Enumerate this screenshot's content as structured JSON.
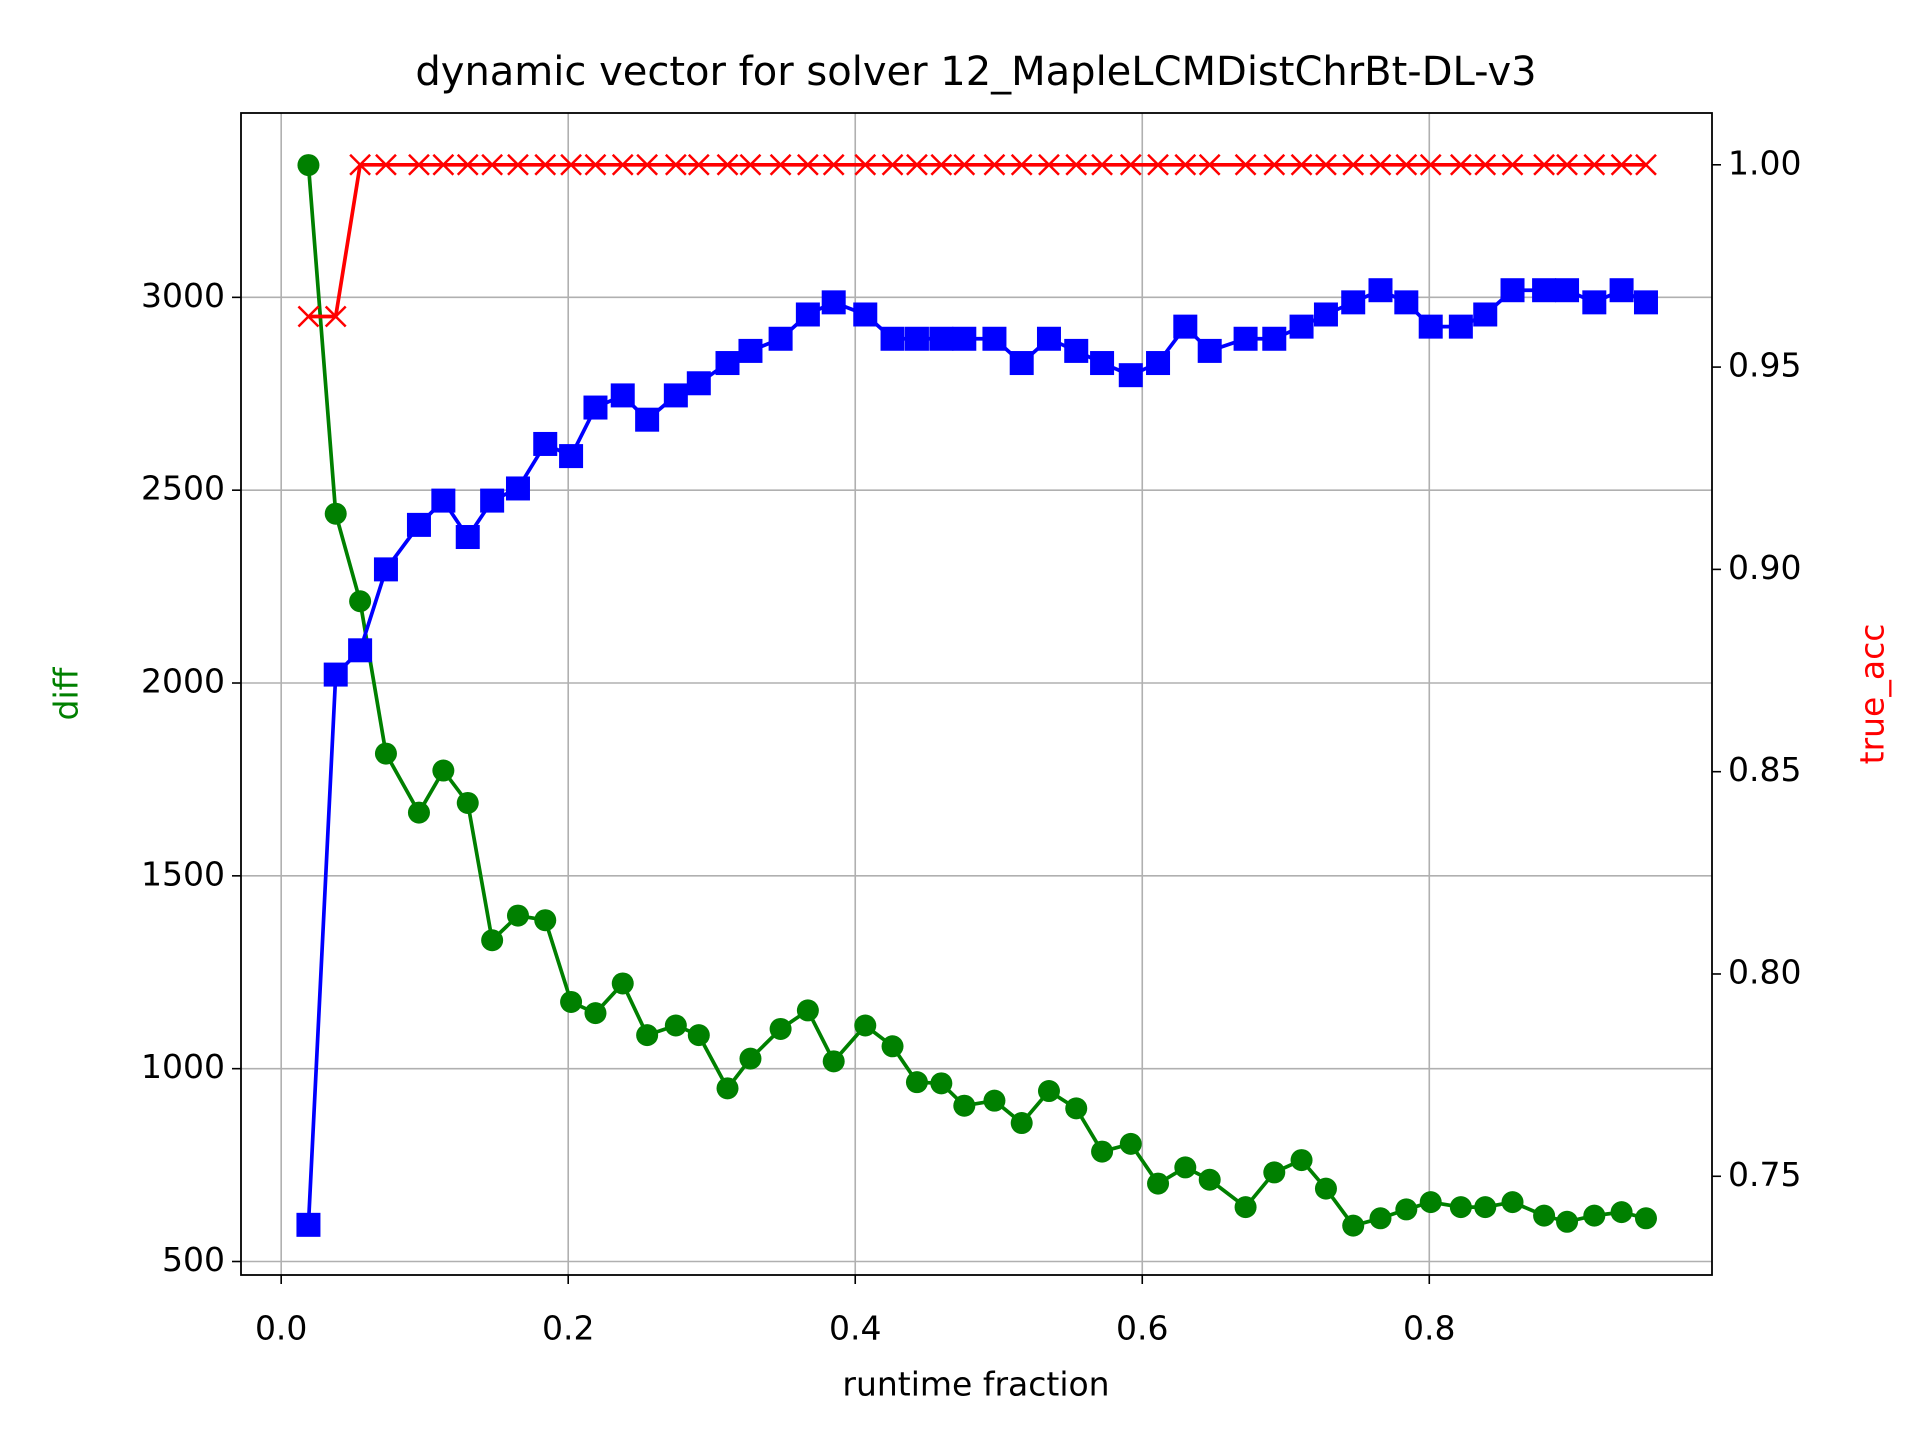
{
  "chart_data": {
    "type": "line",
    "title": "dynamic vector for solver 12_MapleLCMDistChrBt-DL-v3",
    "xlabel": "runtime fraction",
    "ylabel": "diff",
    "y2label": "true_acc",
    "ylabel_color": "green",
    "y2label_color": "red",
    "x": [
      0.019,
      0.038,
      0.055,
      0.073,
      0.096,
      0.113,
      0.13,
      0.147,
      0.165,
      0.184,
      0.202,
      0.219,
      0.238,
      0.255,
      0.275,
      0.291,
      0.311,
      0.327,
      0.348,
      0.367,
      0.385,
      0.407,
      0.426,
      0.443,
      0.46,
      0.476,
      0.497,
      0.516,
      0.535,
      0.554,
      0.572,
      0.592,
      0.611,
      0.63,
      0.647,
      0.672,
      0.692,
      0.711,
      0.728,
      0.747,
      0.766,
      0.784,
      0.801,
      0.822,
      0.839,
      0.858,
      0.88,
      0.896,
      0.915,
      0.934,
      0.951
    ],
    "series": [
      {
        "color": "green",
        "marker": "o",
        "axis": "y",
        "values": [
          3343,
          2439,
          2212,
          1817,
          1664,
          1773,
          1689,
          1333,
          1397,
          1385,
          1173,
          1144,
          1221,
          1087,
          1112,
          1087,
          949,
          1026,
          1103,
          1151,
          1019,
          1112,
          1058,
          965,
          962,
          904,
          917,
          859,
          942,
          897,
          785,
          805,
          702,
          744,
          712,
          641,
          731,
          763,
          689,
          593,
          612,
          635,
          654,
          641,
          641,
          654,
          619,
          603,
          619,
          628,
          612
        ]
      },
      {
        "color": "blue",
        "marker": "s",
        "axis": "y2",
        "values": [
          0.738,
          0.874,
          0.88,
          0.9,
          0.911,
          0.917,
          0.908,
          0.917,
          0.92,
          0.931,
          0.928,
          0.94,
          0.943,
          0.937,
          0.943,
          0.946,
          0.951,
          0.954,
          0.957,
          0.963,
          0.966,
          0.963,
          0.957,
          0.957,
          0.957,
          0.957,
          0.957,
          0.951,
          0.957,
          0.954,
          0.951,
          0.948,
          0.951,
          0.96,
          0.954,
          0.957,
          0.957,
          0.96,
          0.963,
          0.966,
          0.969,
          0.966,
          0.96,
          0.96,
          0.963,
          0.969,
          0.969,
          0.969,
          0.966,
          0.969,
          0.966
        ]
      },
      {
        "color": "red",
        "marker": "x",
        "axis": "y2",
        "values": [
          0.9625,
          0.9625,
          1,
          1,
          1,
          1,
          1,
          1,
          1,
          1,
          1,
          1,
          1,
          1,
          1,
          1,
          1,
          1,
          1,
          1,
          1,
          1,
          1,
          1,
          1,
          1,
          1,
          1,
          1,
          1,
          1,
          1,
          1,
          1,
          1,
          1,
          1,
          1,
          1,
          1,
          1,
          1,
          1,
          1,
          1,
          1,
          1,
          1,
          1,
          1,
          1
        ]
      }
    ],
    "xlim": [
      -0.028,
      0.997
    ],
    "xticks": [
      {
        "value": 0,
        "label": "0.0"
      },
      0.2,
      0.4,
      0.6,
      0.8
    ],
    "ylim": [
      465,
      3478
    ],
    "yticks": [
      500,
      1000,
      1500,
      2000,
      2500,
      3000
    ],
    "y2lim": [
      0.7256,
      1.0128
    ],
    "y2ticks": [
      0.75,
      {
        "value": 0.8,
        "label": "0.80"
      },
      0.85,
      {
        "value": 0.9,
        "label": "0.90"
      },
      0.95,
      {
        "value": 1,
        "label": "1.00"
      }
    ],
    "grid": true
  }
}
